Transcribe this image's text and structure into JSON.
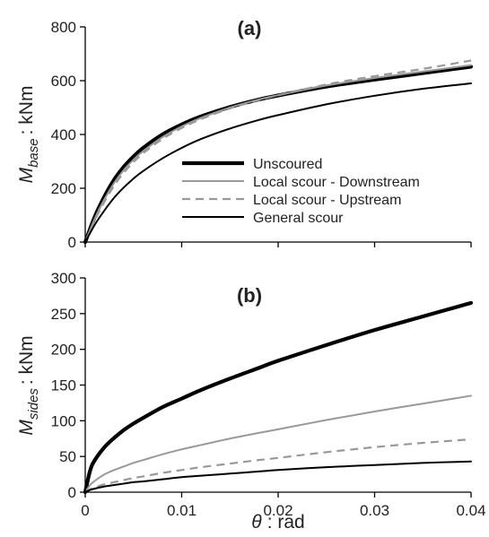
{
  "chart_data": [
    {
      "type": "line",
      "panel_label": "(a)",
      "ylabel": {
        "symbol": "M",
        "subscript": "base",
        "unit": ": kNm"
      },
      "xlim": [
        0,
        0.04
      ],
      "ylim": [
        0,
        800
      ],
      "yticks": [
        "0",
        "200",
        "400",
        "600",
        "800"
      ],
      "grid": false,
      "legend_position": "center-right",
      "series": [
        {
          "name": "Unscoured",
          "style": "thick-solid",
          "color": "#000000",
          "x": [
            0,
            0.001,
            0.002,
            0.003,
            0.004,
            0.005,
            0.006,
            0.008,
            0.01,
            0.012,
            0.015,
            0.018,
            0.02,
            0.025,
            0.03,
            0.035,
            0.04
          ],
          "y": [
            0,
            95,
            170,
            232,
            280,
            318,
            350,
            400,
            437,
            467,
            502,
            530,
            545,
            578,
            604,
            628,
            652
          ]
        },
        {
          "name": "Local scour - Downstream",
          "style": "solid",
          "color": "#999999",
          "x": [
            0,
            0.001,
            0.002,
            0.003,
            0.004,
            0.005,
            0.006,
            0.008,
            0.01,
            0.012,
            0.015,
            0.018,
            0.02,
            0.025,
            0.03,
            0.035,
            0.04
          ],
          "y": [
            0,
            88,
            160,
            220,
            268,
            306,
            338,
            390,
            430,
            462,
            500,
            530,
            546,
            582,
            610,
            634,
            658
          ]
        },
        {
          "name": "Local scour - Upstream",
          "style": "dashed",
          "color": "#999999",
          "x": [
            0,
            0.001,
            0.002,
            0.003,
            0.004,
            0.005,
            0.006,
            0.008,
            0.01,
            0.012,
            0.015,
            0.018,
            0.02,
            0.025,
            0.03,
            0.035,
            0.04
          ],
          "y": [
            0,
            82,
            150,
            210,
            258,
            297,
            330,
            383,
            424,
            457,
            497,
            528,
            546,
            586,
            617,
            644,
            675
          ]
        },
        {
          "name": "General scour",
          "style": "solid",
          "color": "#000000",
          "x": [
            0,
            0.001,
            0.002,
            0.003,
            0.004,
            0.005,
            0.006,
            0.008,
            0.01,
            0.012,
            0.015,
            0.018,
            0.02,
            0.025,
            0.03,
            0.035,
            0.04
          ],
          "y": [
            0,
            65,
            118,
            165,
            203,
            236,
            264,
            311,
            350,
            383,
            422,
            454,
            472,
            512,
            544,
            570,
            590
          ]
        }
      ]
    },
    {
      "type": "line",
      "panel_label": "(b)",
      "xlabel": {
        "symbol": "θ",
        "unit": ": rad"
      },
      "ylabel": {
        "symbol": "M",
        "subscript": "sides",
        "unit": ": kNm"
      },
      "xlim": [
        0,
        0.04
      ],
      "ylim": [
        0,
        300
      ],
      "xticks": [
        "0",
        "0.01",
        "0.02",
        "0.03",
        "0.04"
      ],
      "yticks": [
        "0",
        "50",
        "100",
        "150",
        "200",
        "250",
        "300"
      ],
      "grid": false,
      "series": [
        {
          "name": "Unscoured",
          "style": "thick-solid",
          "color": "#000000",
          "x": [
            0,
            0.0005,
            0.001,
            0.002,
            0.003,
            0.004,
            0.005,
            0.006,
            0.008,
            0.01,
            0.012,
            0.015,
            0.018,
            0.02,
            0.025,
            0.03,
            0.035,
            0.04
          ],
          "y": [
            0,
            30,
            45,
            63,
            76,
            87,
            96,
            104,
            119,
            131,
            143,
            159,
            174,
            184,
            206,
            227,
            246,
            265
          ]
        },
        {
          "name": "Local scour - Downstream",
          "style": "solid",
          "color": "#999999",
          "x": [
            0,
            0.0005,
            0.001,
            0.002,
            0.003,
            0.004,
            0.005,
            0.006,
            0.008,
            0.01,
            0.012,
            0.015,
            0.018,
            0.02,
            0.025,
            0.03,
            0.035,
            0.04
          ],
          "y": [
            0,
            10,
            16,
            25,
            31,
            36,
            41,
            45,
            53,
            60,
            66,
            75,
            83,
            88,
            101,
            113,
            124,
            135
          ]
        },
        {
          "name": "Local scour - Upstream",
          "style": "dashed",
          "color": "#999999",
          "x": [
            0,
            0.0005,
            0.001,
            0.002,
            0.003,
            0.004,
            0.005,
            0.006,
            0.008,
            0.01,
            0.012,
            0.015,
            0.018,
            0.02,
            0.025,
            0.03,
            0.035,
            0.04
          ],
          "y": [
            0,
            4,
            7,
            11,
            14,
            17,
            20,
            22,
            27,
            31,
            35,
            40,
            45,
            48,
            56,
            63,
            69,
            74
          ]
        },
        {
          "name": "General scour",
          "style": "solid",
          "color": "#000000",
          "x": [
            0,
            0.0005,
            0.001,
            0.002,
            0.003,
            0.004,
            0.005,
            0.006,
            0.008,
            0.01,
            0.012,
            0.015,
            0.018,
            0.02,
            0.025,
            0.03,
            0.035,
            0.04
          ],
          "y": [
            0,
            3,
            5,
            8,
            10,
            12,
            14,
            15,
            18,
            21,
            23,
            26,
            29,
            31,
            35,
            38,
            41,
            43
          ]
        }
      ]
    }
  ]
}
